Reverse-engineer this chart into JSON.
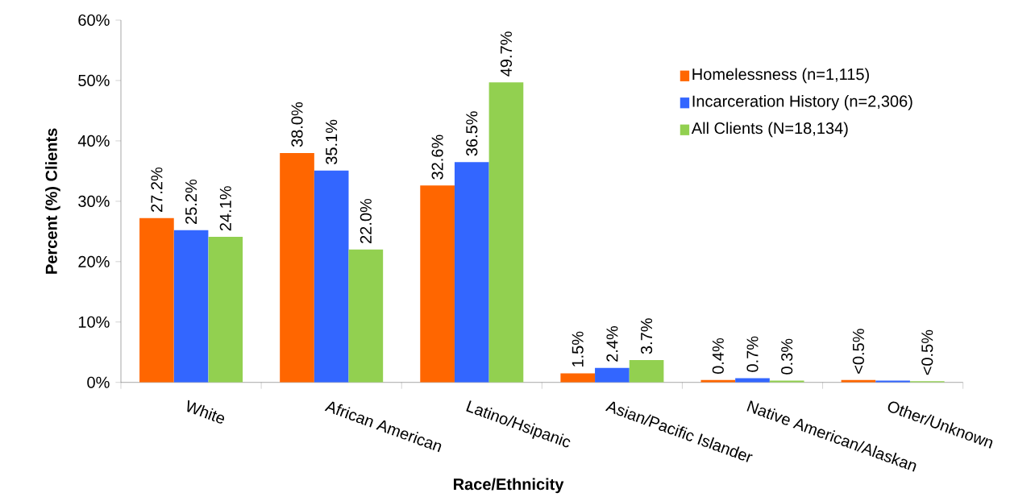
{
  "chart_data": {
    "type": "bar",
    "xlabel": "Race/Ethnicity",
    "ylabel": "Percent (%) Clients",
    "categories": [
      "White",
      "African American",
      "Latino/Hsipanic",
      "Asian/Pacific Islander",
      "Native American/Alaskan",
      "Other/Unknown"
    ],
    "series": [
      {
        "name": "Homelessness (n=1,115)",
        "color": "#ff6600",
        "values": [
          27.2,
          38.0,
          32.6,
          1.5,
          0.4,
          0.4
        ],
        "value_labels": [
          "27.2%",
          "38.0%",
          "32.6%",
          "1.5%",
          "0.4%",
          "<0.5%"
        ]
      },
      {
        "name": "Incarceration History (n=2,306)",
        "color": "#3366ff",
        "values": [
          25.2,
          35.1,
          36.5,
          2.4,
          0.7,
          0.3
        ],
        "value_labels": [
          "25.2%",
          "35.1%",
          "36.5%",
          "2.4%",
          "0.7%",
          null
        ]
      },
      {
        "name": "All Clients (N=18,134)",
        "color": "#92d050",
        "values": [
          24.1,
          22.0,
          49.7,
          3.7,
          0.3,
          0.2
        ],
        "value_labels": [
          "24.1%",
          "22.0%",
          "49.7%",
          "3.7%",
          "0.3%",
          "<0.5%"
        ]
      }
    ],
    "ylim": [
      0,
      60
    ],
    "yticks": [
      {
        "value": 0,
        "label": "0%"
      },
      {
        "value": 10,
        "label": "10%"
      },
      {
        "value": 20,
        "label": "20%"
      },
      {
        "value": 30,
        "label": "30%"
      },
      {
        "value": 40,
        "label": "40%"
      },
      {
        "value": 50,
        "label": "50%"
      },
      {
        "value": 60,
        "label": "60%"
      }
    ],
    "legend": "right",
    "grid": false
  }
}
